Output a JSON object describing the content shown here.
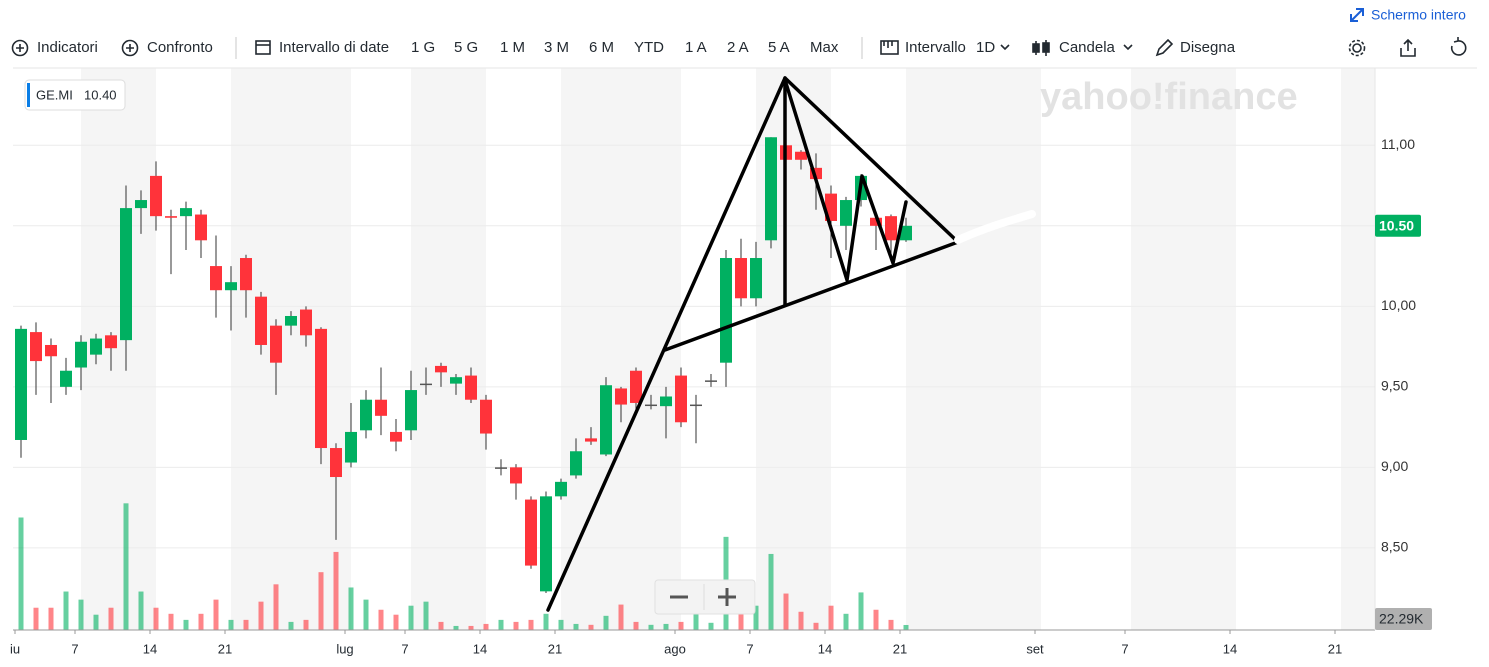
{
  "chart_data": {
    "type": "candlestick",
    "fullscreen": "Schermo intero",
    "toolbar": [
      "Indicatori",
      "Confronto",
      "Intervallo di date",
      "1 G",
      "5 G",
      "1 M",
      "3 M",
      "6 M",
      "YTD",
      "1 A",
      "2 A",
      "5 A",
      "Max",
      "Intervallo",
      "1D",
      "Candela",
      "Disegna"
    ],
    "watermark": "yahoo!finance",
    "symbol": "GE.MI",
    "legend_value": "10.40",
    "price_tag": "10.50",
    "volume_tag": "22.29K",
    "up_color": "#00b061",
    "down_color": "#ff333a",
    "doji_color": "#555555",
    "grid": true,
    "ylim": [
      7.99,
      11.48
    ],
    "yticks": [
      {
        "value": 8.5,
        "label": "8,50"
      },
      {
        "value": 9,
        "label": "9,00"
      },
      {
        "value": 9.5,
        "label": "9,50"
      },
      {
        "value": 10,
        "label": "10,00"
      },
      {
        "value": 10.5,
        "label": "10,50"
      },
      {
        "value": 11,
        "label": "11,00"
      }
    ],
    "volume_lim": [
      0,
      600
    ],
    "categories": [
      "iu",
      null,
      null,
      null,
      "7",
      null,
      null,
      null,
      null,
      "14",
      null,
      null,
      null,
      null,
      "21",
      null,
      null,
      null,
      null,
      null,
      null,
      null,
      "lug",
      null,
      null,
      null,
      "7",
      null,
      null,
      null,
      null,
      "14",
      null,
      null,
      null,
      null,
      "21",
      null,
      null,
      null,
      null,
      null,
      null,
      null,
      "ago",
      null,
      null,
      null,
      null,
      "7",
      null,
      null,
      null,
      null,
      "14",
      null,
      null,
      null,
      null,
      "21",
      null,
      null,
      null,
      null,
      null,
      null,
      null,
      null,
      "set",
      null,
      null,
      null,
      null,
      null,
      "7",
      null,
      null,
      null,
      null,
      null,
      null,
      "14",
      null,
      null,
      null,
      null,
      null,
      null,
      "21",
      null,
      null
    ],
    "open": [
      9.17,
      9.84,
      9.76,
      9.5,
      9.62,
      9.7,
      9.82,
      9.79,
      10.61,
      10.81,
      10.56,
      10.56,
      10.57,
      10.25,
      10.1,
      10.3,
      10.06,
      9.88,
      9.88,
      9.98,
      9.86,
      9.12,
      9.03,
      9.23,
      9.42,
      9.22,
      9.23,
      9.52,
      9.63,
      9.52,
      9.57,
      9.42,
      9.0,
      9.0,
      8.8,
      8.23,
      8.82,
      8.95,
      9.18,
      9.08,
      9.49,
      9.6,
      9.39,
      9.38,
      9.57,
      9.39,
      9.54,
      9.65,
      10.3,
      10.05,
      10.41,
      11.0,
      10.96,
      10.86,
      10.7,
      10.5,
      10.66,
      10.55,
      10.56,
      10.41,
      null,
      null,
      null,
      null,
      null,
      null,
      null,
      null,
      null,
      null,
      null,
      null,
      null,
      null,
      null,
      null,
      null,
      null,
      null,
      null,
      null,
      null,
      null,
      null,
      null,
      null,
      null,
      null,
      null,
      null,
      null
    ],
    "high": [
      9.88,
      9.9,
      9.8,
      9.68,
      9.82,
      9.83,
      9.84,
      10.75,
      10.72,
      10.9,
      10.6,
      10.65,
      10.6,
      10.44,
      10.25,
      10.32,
      10.09,
      9.92,
      9.97,
      10.0,
      9.87,
      9.15,
      9.4,
      9.48,
      9.62,
      9.3,
      9.6,
      9.62,
      9.65,
      9.58,
      9.62,
      9.45,
      9.05,
      9.02,
      8.82,
      8.85,
      8.93,
      9.18,
      9.25,
      9.56,
      9.5,
      9.62,
      9.45,
      9.5,
      9.62,
      9.45,
      9.58,
      10.35,
      10.42,
      10.4,
      11.05,
      11.02,
      10.97,
      10.95,
      10.75,
      10.68,
      10.82,
      10.56,
      10.57,
      10.55,
      null,
      null,
      null,
      null,
      null,
      null,
      null,
      null,
      null,
      null,
      null,
      null,
      null,
      null,
      null,
      null,
      null,
      null,
      null,
      null,
      null,
      null,
      null,
      null,
      null,
      null,
      null,
      null,
      null,
      null,
      null
    ],
    "low": [
      9.06,
      9.45,
      9.4,
      9.45,
      9.48,
      9.64,
      9.6,
      9.6,
      10.45,
      10.47,
      10.2,
      10.35,
      10.3,
      9.93,
      9.85,
      9.93,
      9.7,
      9.45,
      9.82,
      9.75,
      9.02,
      8.55,
      9.0,
      9.18,
      9.2,
      9.1,
      9.17,
      9.45,
      9.5,
      9.45,
      9.4,
      9.11,
      8.95,
      8.8,
      8.37,
      8.22,
      8.8,
      8.93,
      9.14,
      9.07,
      9.28,
      9.35,
      9.36,
      9.18,
      9.25,
      9.15,
      9.5,
      9.5,
      10.0,
      10.0,
      10.36,
      10.8,
      10.85,
      10.6,
      10.3,
      10.35,
      10.62,
      10.35,
      10.3,
      10.4,
      null,
      null,
      null,
      null,
      null,
      null,
      null,
      null,
      null,
      null,
      null,
      null,
      null,
      null,
      null,
      null,
      null,
      null,
      null,
      null,
      null,
      null,
      null,
      null,
      null,
      null,
      null,
      null,
      null,
      null,
      null
    ],
    "close": [
      9.86,
      9.66,
      9.69,
      9.6,
      9.78,
      9.8,
      9.74,
      10.61,
      10.66,
      10.56,
      10.55,
      10.61,
      10.41,
      10.1,
      10.15,
      10.1,
      9.76,
      9.65,
      9.94,
      9.82,
      9.12,
      8.94,
      9.22,
      9.42,
      9.32,
      9.16,
      9.48,
      9.52,
      9.59,
      9.56,
      9.42,
      9.21,
      9.0,
      8.9,
      8.39,
      8.82,
      8.91,
      9.1,
      9.16,
      9.51,
      9.39,
      9.4,
      9.39,
      9.44,
      9.28,
      9.39,
      9.54,
      10.3,
      10.05,
      10.3,
      11.05,
      10.91,
      10.91,
      10.79,
      10.53,
      10.66,
      10.81,
      10.5,
      10.41,
      10.5,
      null,
      null,
      null,
      null,
      null,
      null,
      null,
      null,
      null,
      null,
      null,
      null,
      null,
      null,
      null,
      null,
      null,
      null,
      null,
      null,
      null,
      null,
      null,
      null,
      null,
      null,
      null,
      null,
      null,
      null,
      null
    ],
    "volume": [
      500,
      99,
      99,
      171,
      135,
      68,
      99,
      563,
      171,
      99,
      72,
      45,
      72,
      135,
      45,
      45,
      126,
      203,
      36,
      45,
      257,
      347,
      189,
      135,
      90,
      68,
      108,
      126,
      36,
      18,
      18,
      27,
      45,
      36,
      45,
      72,
      45,
      27,
      23,
      63,
      113,
      36,
      23,
      27,
      36,
      90,
      32,
      414,
      180,
      108,
      338,
      162,
      81,
      32,
      108,
      72,
      167,
      90,
      45,
      22.29,
      null,
      null,
      null,
      null,
      null,
      null,
      null,
      null,
      null,
      null,
      null,
      null,
      null,
      null,
      null,
      null,
      null,
      null,
      null,
      null,
      null,
      null,
      null,
      null,
      null,
      null,
      null,
      null,
      null,
      null,
      null
    ]
  }
}
